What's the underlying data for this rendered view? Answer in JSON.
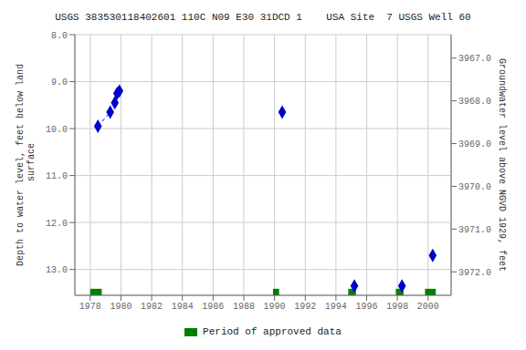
{
  "chart_data": {
    "type": "scatter",
    "title": "USGS 383530118402601 110C N09 E30 31DCD 1    USA Site  7 USGS Well 60",
    "ylabel": "Depth to water level, feet below land\n surface",
    "y2label": "Groundwater level above NGVD 1929, feet",
    "xlim": [
      1977,
      2001.5
    ],
    "xticks": [
      1978,
      1980,
      1982,
      1984,
      1986,
      1988,
      1990,
      1992,
      1994,
      1996,
      1998,
      2000
    ],
    "ylim": [
      13.55,
      8.0
    ],
    "yticks": [
      {
        "value": 8.0,
        "label": "8.0"
      },
      {
        "value": 9.0,
        "label": "9.0"
      },
      {
        "value": 10.0,
        "label": "10.0"
      },
      {
        "value": 11.0,
        "label": "11.0"
      },
      {
        "value": 12.0,
        "label": "12.0"
      },
      {
        "value": 13.0,
        "label": "13.0"
      }
    ],
    "y2lim": [
      3972.55,
      3966.45
    ],
    "y2ticks": [
      {
        "value": 3972.0,
        "label": "3972.0"
      },
      {
        "value": 3971.0,
        "label": "3971.0"
      },
      {
        "value": 3970.0,
        "label": "3970.0"
      },
      {
        "value": 3969.0,
        "label": "3969.0"
      },
      {
        "value": 3968.0,
        "label": "3968.0"
      },
      {
        "value": 3967.0,
        "label": "3967.0"
      }
    ],
    "grid": true,
    "legend": "bottom",
    "series": [
      {
        "type": "line",
        "line_style": "dashed",
        "marker": "diamond",
        "color": "#0000cc",
        "x": [
          1978.5,
          1979.3,
          1979.6,
          1979.75,
          1979.9
        ],
        "values": [
          9.95,
          9.65,
          9.45,
          9.25,
          9.2
        ]
      },
      {
        "type": "scatter",
        "marker": "diamond",
        "color": "#0000cc",
        "x": [
          1990.5,
          1995.2,
          1998.3,
          2000.3
        ],
        "values": [
          9.65,
          13.35,
          13.35,
          12.7
        ]
      },
      {
        "type": "span",
        "name": "Period of approved data",
        "color": "#008000",
        "ranges": [
          [
            1978.0,
            1978.75
          ],
          [
            1989.9,
            1990.3
          ],
          [
            1994.8,
            1995.3
          ],
          [
            1997.9,
            1998.4
          ],
          [
            1999.8,
            2000.5
          ]
        ]
      }
    ]
  }
}
